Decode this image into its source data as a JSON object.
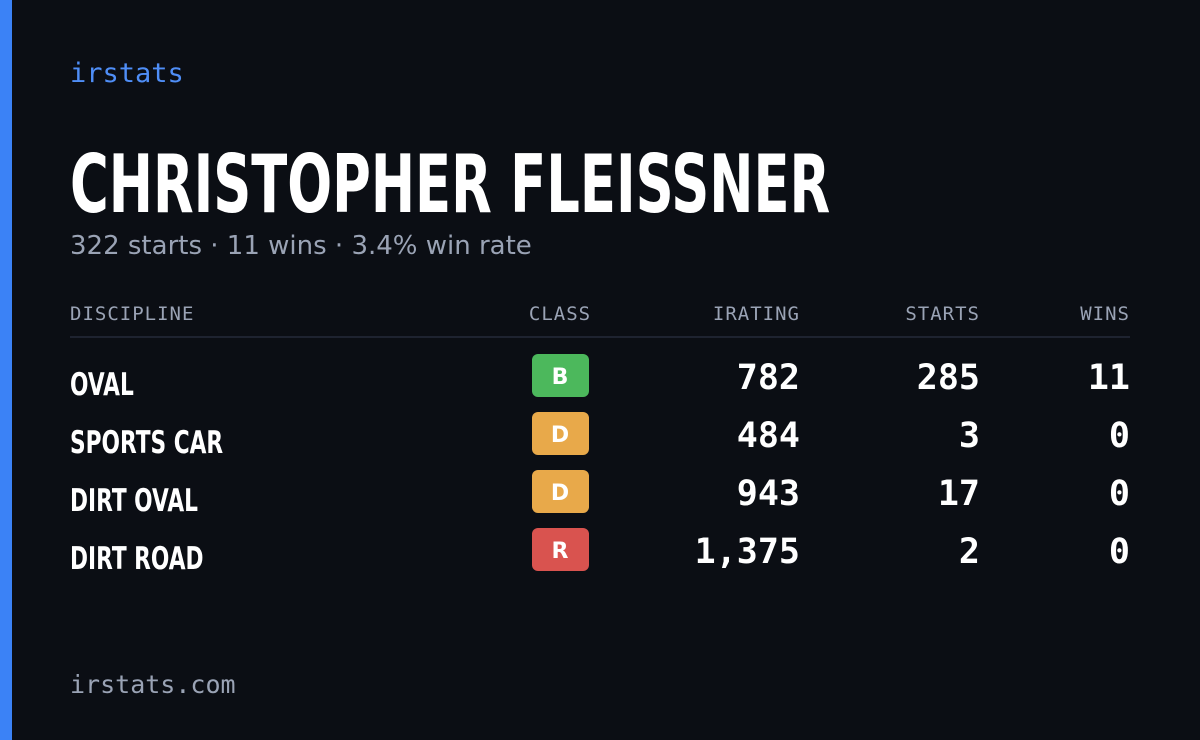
{
  "brand": "irstats",
  "driver": {
    "name": "CHRISTOPHER FLEISSNER",
    "summary": "322 starts · 11 wins · 3.4% win rate"
  },
  "table": {
    "headers": [
      "DISCIPLINE",
      "CLASS",
      "IRATING",
      "STARTS",
      "WINS"
    ],
    "rows": [
      {
        "discipline": "OVAL",
        "class": "B",
        "badge_color": "#4cb85c",
        "irating": "782",
        "starts": "285",
        "wins": "11"
      },
      {
        "discipline": "SPORTS CAR",
        "class": "D",
        "badge_color": "#e8a94a",
        "irating": "484",
        "starts": "3",
        "wins": "0"
      },
      {
        "discipline": "DIRT OVAL",
        "class": "D",
        "badge_color": "#e8a94a",
        "irating": "943",
        "starts": "17",
        "wins": "0"
      },
      {
        "discipline": "DIRT ROAD",
        "class": "R",
        "badge_color": "#d9534f",
        "irating": "1,375",
        "starts": "2",
        "wins": "0"
      }
    ]
  },
  "footer": "irstats.com"
}
